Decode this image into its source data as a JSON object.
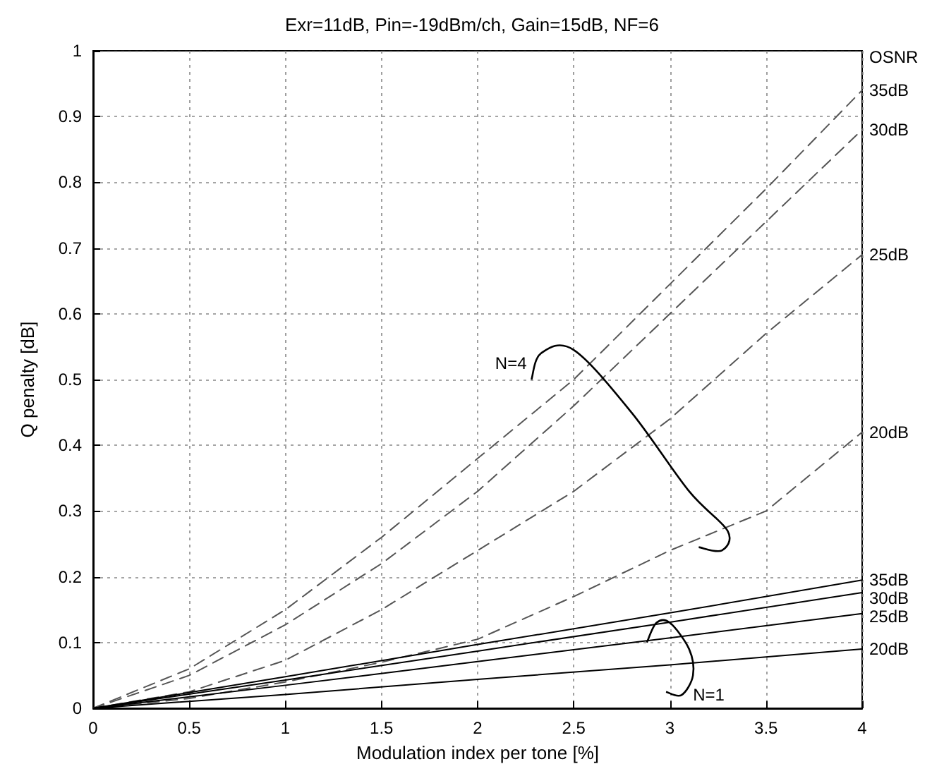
{
  "chart_data": {
    "type": "line",
    "title": "Exr=11dB, Pin=-19dBm/ch, Gain=15dB, NF=6",
    "xlabel": "Modulation index per tone [%]",
    "ylabel": "Q penalty [dB]",
    "x": [
      0,
      0.5,
      1,
      1.5,
      2,
      2.5,
      3,
      3.5,
      4
    ],
    "series": [
      {
        "name": "35dB",
        "color": "#555555",
        "line_style": "dashed",
        "values": [
          0,
          0.06,
          0.15,
          0.26,
          0.38,
          0.5,
          0.645,
          0.79,
          0.94
        ]
      },
      {
        "name": "30dB",
        "color": "#555555",
        "line_style": "dashed",
        "values": [
          0,
          0.05,
          0.127,
          0.22,
          0.33,
          0.46,
          0.6,
          0.74,
          0.88
        ]
      },
      {
        "name": "25dB",
        "color": "#555555",
        "line_style": "dashed",
        "values": [
          0,
          0.025,
          0.073,
          0.15,
          0.24,
          0.33,
          0.44,
          0.57,
          0.69
        ]
      },
      {
        "name": "20dB",
        "color": "#555555",
        "line_style": "dashed",
        "values": [
          0,
          0.015,
          0.04,
          0.07,
          0.105,
          0.17,
          0.24,
          0.3,
          0.42
        ]
      },
      {
        "name": "35dB",
        "color": "#000000",
        "line_style": "solid",
        "x": [
          0,
          1,
          2,
          3,
          4
        ],
        "values": [
          0,
          0.048,
          0.097,
          0.145,
          0.195
        ]
      },
      {
        "name": "30dB",
        "color": "#000000",
        "line_style": "solid",
        "x": [
          0,
          1,
          2,
          3,
          4
        ],
        "values": [
          0,
          0.043,
          0.087,
          0.131,
          0.176
        ]
      },
      {
        "name": "25dB",
        "color": "#000000",
        "line_style": "solid",
        "x": [
          0,
          1,
          2,
          3,
          4
        ],
        "values": [
          0,
          0.035,
          0.071,
          0.107,
          0.144
        ]
      },
      {
        "name": "20dB",
        "color": "#000000",
        "line_style": "solid",
        "x": [
          0,
          1,
          2,
          3,
          4
        ],
        "values": [
          0,
          0.021,
          0.044,
          0.066,
          0.09
        ]
      }
    ],
    "annotations": [
      "OSNR",
      "N=4",
      "N=1"
    ],
    "xlim": [
      0,
      4
    ],
    "xticks": [
      0,
      0.5,
      1,
      1.5,
      2,
      2.5,
      3,
      3.5,
      4
    ],
    "ylim": [
      0,
      1
    ],
    "yticks": [
      0,
      0.1,
      0.2,
      0.3,
      0.4,
      0.5,
      0.6,
      0.7,
      0.8,
      0.9,
      1
    ],
    "grid": true,
    "legend": false,
    "marker": "none"
  }
}
